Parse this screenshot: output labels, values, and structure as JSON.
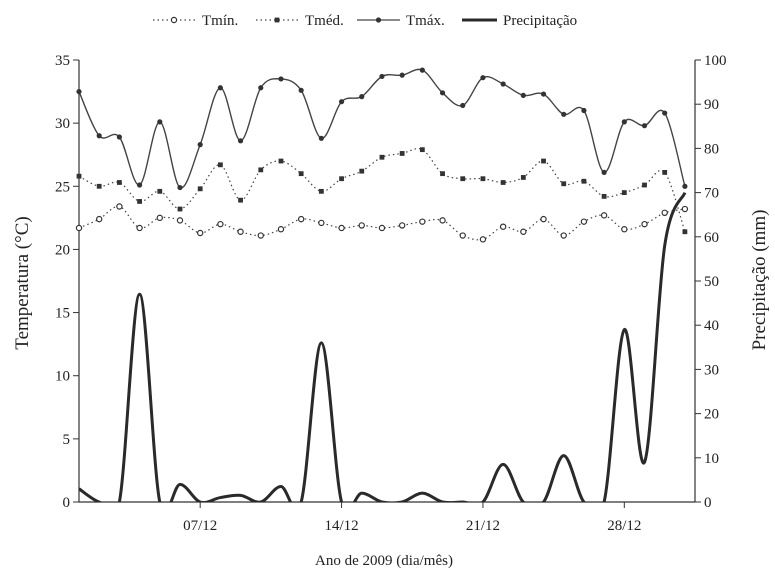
{
  "chart_data": {
    "type": "line",
    "xlabel": "Ano de 2009 (dia/mês)",
    "ylabel": "Temperatura (°C)",
    "y2label": "Precipitação (mm)",
    "xlim": [
      1,
      31.5
    ],
    "ylim": [
      0,
      35
    ],
    "y2lim": [
      0,
      100
    ],
    "xticks": [
      {
        "day": 7,
        "label": "07/12"
      },
      {
        "day": 14,
        "label": "14/12"
      },
      {
        "day": 21,
        "label": "21/12"
      },
      {
        "day": 28,
        "label": "28/12"
      }
    ],
    "yticks": [
      0,
      5,
      10,
      15,
      20,
      25,
      30,
      35
    ],
    "y2ticks": [
      0,
      10,
      20,
      30,
      40,
      50,
      60,
      70,
      80,
      90,
      100
    ],
    "legend_position": "top",
    "x": [
      1,
      2,
      3,
      4,
      5,
      6,
      7,
      8,
      9,
      10,
      11,
      12,
      13,
      14,
      15,
      16,
      17,
      18,
      19,
      20,
      21,
      22,
      23,
      24,
      25,
      26,
      27,
      28,
      29,
      30,
      31
    ],
    "series": [
      {
        "name": "Tmín.",
        "axis": "left",
        "style": "dotted-marker",
        "values": [
          21.7,
          22.4,
          23.4,
          21.7,
          22.5,
          22.3,
          21.3,
          22.0,
          21.4,
          21.1,
          21.6,
          22.4,
          22.1,
          21.7,
          21.9,
          21.7,
          21.9,
          22.2,
          22.3,
          21.1,
          20.8,
          21.8,
          21.4,
          22.4,
          21.1,
          22.2,
          22.7,
          21.6,
          22.0,
          22.9,
          23.2
        ]
      },
      {
        "name": "Tméd.",
        "axis": "left",
        "style": "dotted-marker",
        "values": [
          25.8,
          25.0,
          25.3,
          23.8,
          24.6,
          23.2,
          24.8,
          26.7,
          23.9,
          26.3,
          27.0,
          26.0,
          24.6,
          25.6,
          26.2,
          27.3,
          27.6,
          27.9,
          26.0,
          25.6,
          25.6,
          25.3,
          25.7,
          27.0,
          25.2,
          25.4,
          24.2,
          24.5,
          25.1,
          26.1,
          21.4
        ]
      },
      {
        "name": "Tmáx.",
        "axis": "left",
        "style": "solid-marker",
        "values": [
          32.5,
          29.0,
          28.9,
          25.1,
          30.1,
          24.9,
          28.3,
          32.8,
          28.6,
          32.8,
          33.5,
          32.6,
          28.8,
          31.7,
          32.1,
          33.7,
          33.8,
          34.2,
          32.4,
          31.4,
          33.6,
          33.1,
          32.2,
          32.3,
          30.7,
          31.0,
          26.1,
          30.1,
          29.8,
          30.8,
          25.0
        ]
      },
      {
        "name": "Precipitação",
        "axis": "right",
        "style": "thick-line",
        "values": [
          3.0,
          0,
          0,
          47.0,
          0,
          4.0,
          0,
          1.0,
          1.5,
          0,
          3.5,
          0,
          36.0,
          0,
          2.0,
          0,
          0,
          2.0,
          0,
          0,
          0,
          8.5,
          0,
          0,
          10.5,
          0,
          0,
          39.0,
          9.0,
          58.0,
          70.0
        ]
      }
    ]
  }
}
